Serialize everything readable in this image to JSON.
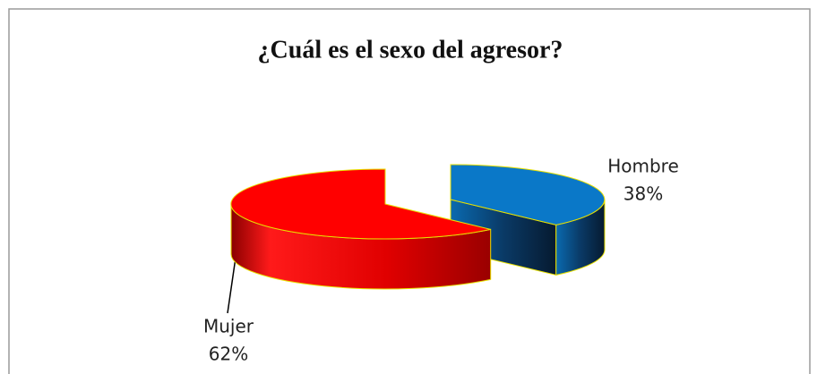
{
  "chart_data": {
    "type": "pie",
    "title": "¿Cuál es el sexo del agresor?",
    "categories": [
      "Hombre",
      "Mujer"
    ],
    "values": [
      38,
      62
    ],
    "value_labels": [
      "38%",
      "62%"
    ],
    "colors": [
      "#0a78c8",
      "#ff0000"
    ],
    "three_d": true,
    "exploded": true
  }
}
